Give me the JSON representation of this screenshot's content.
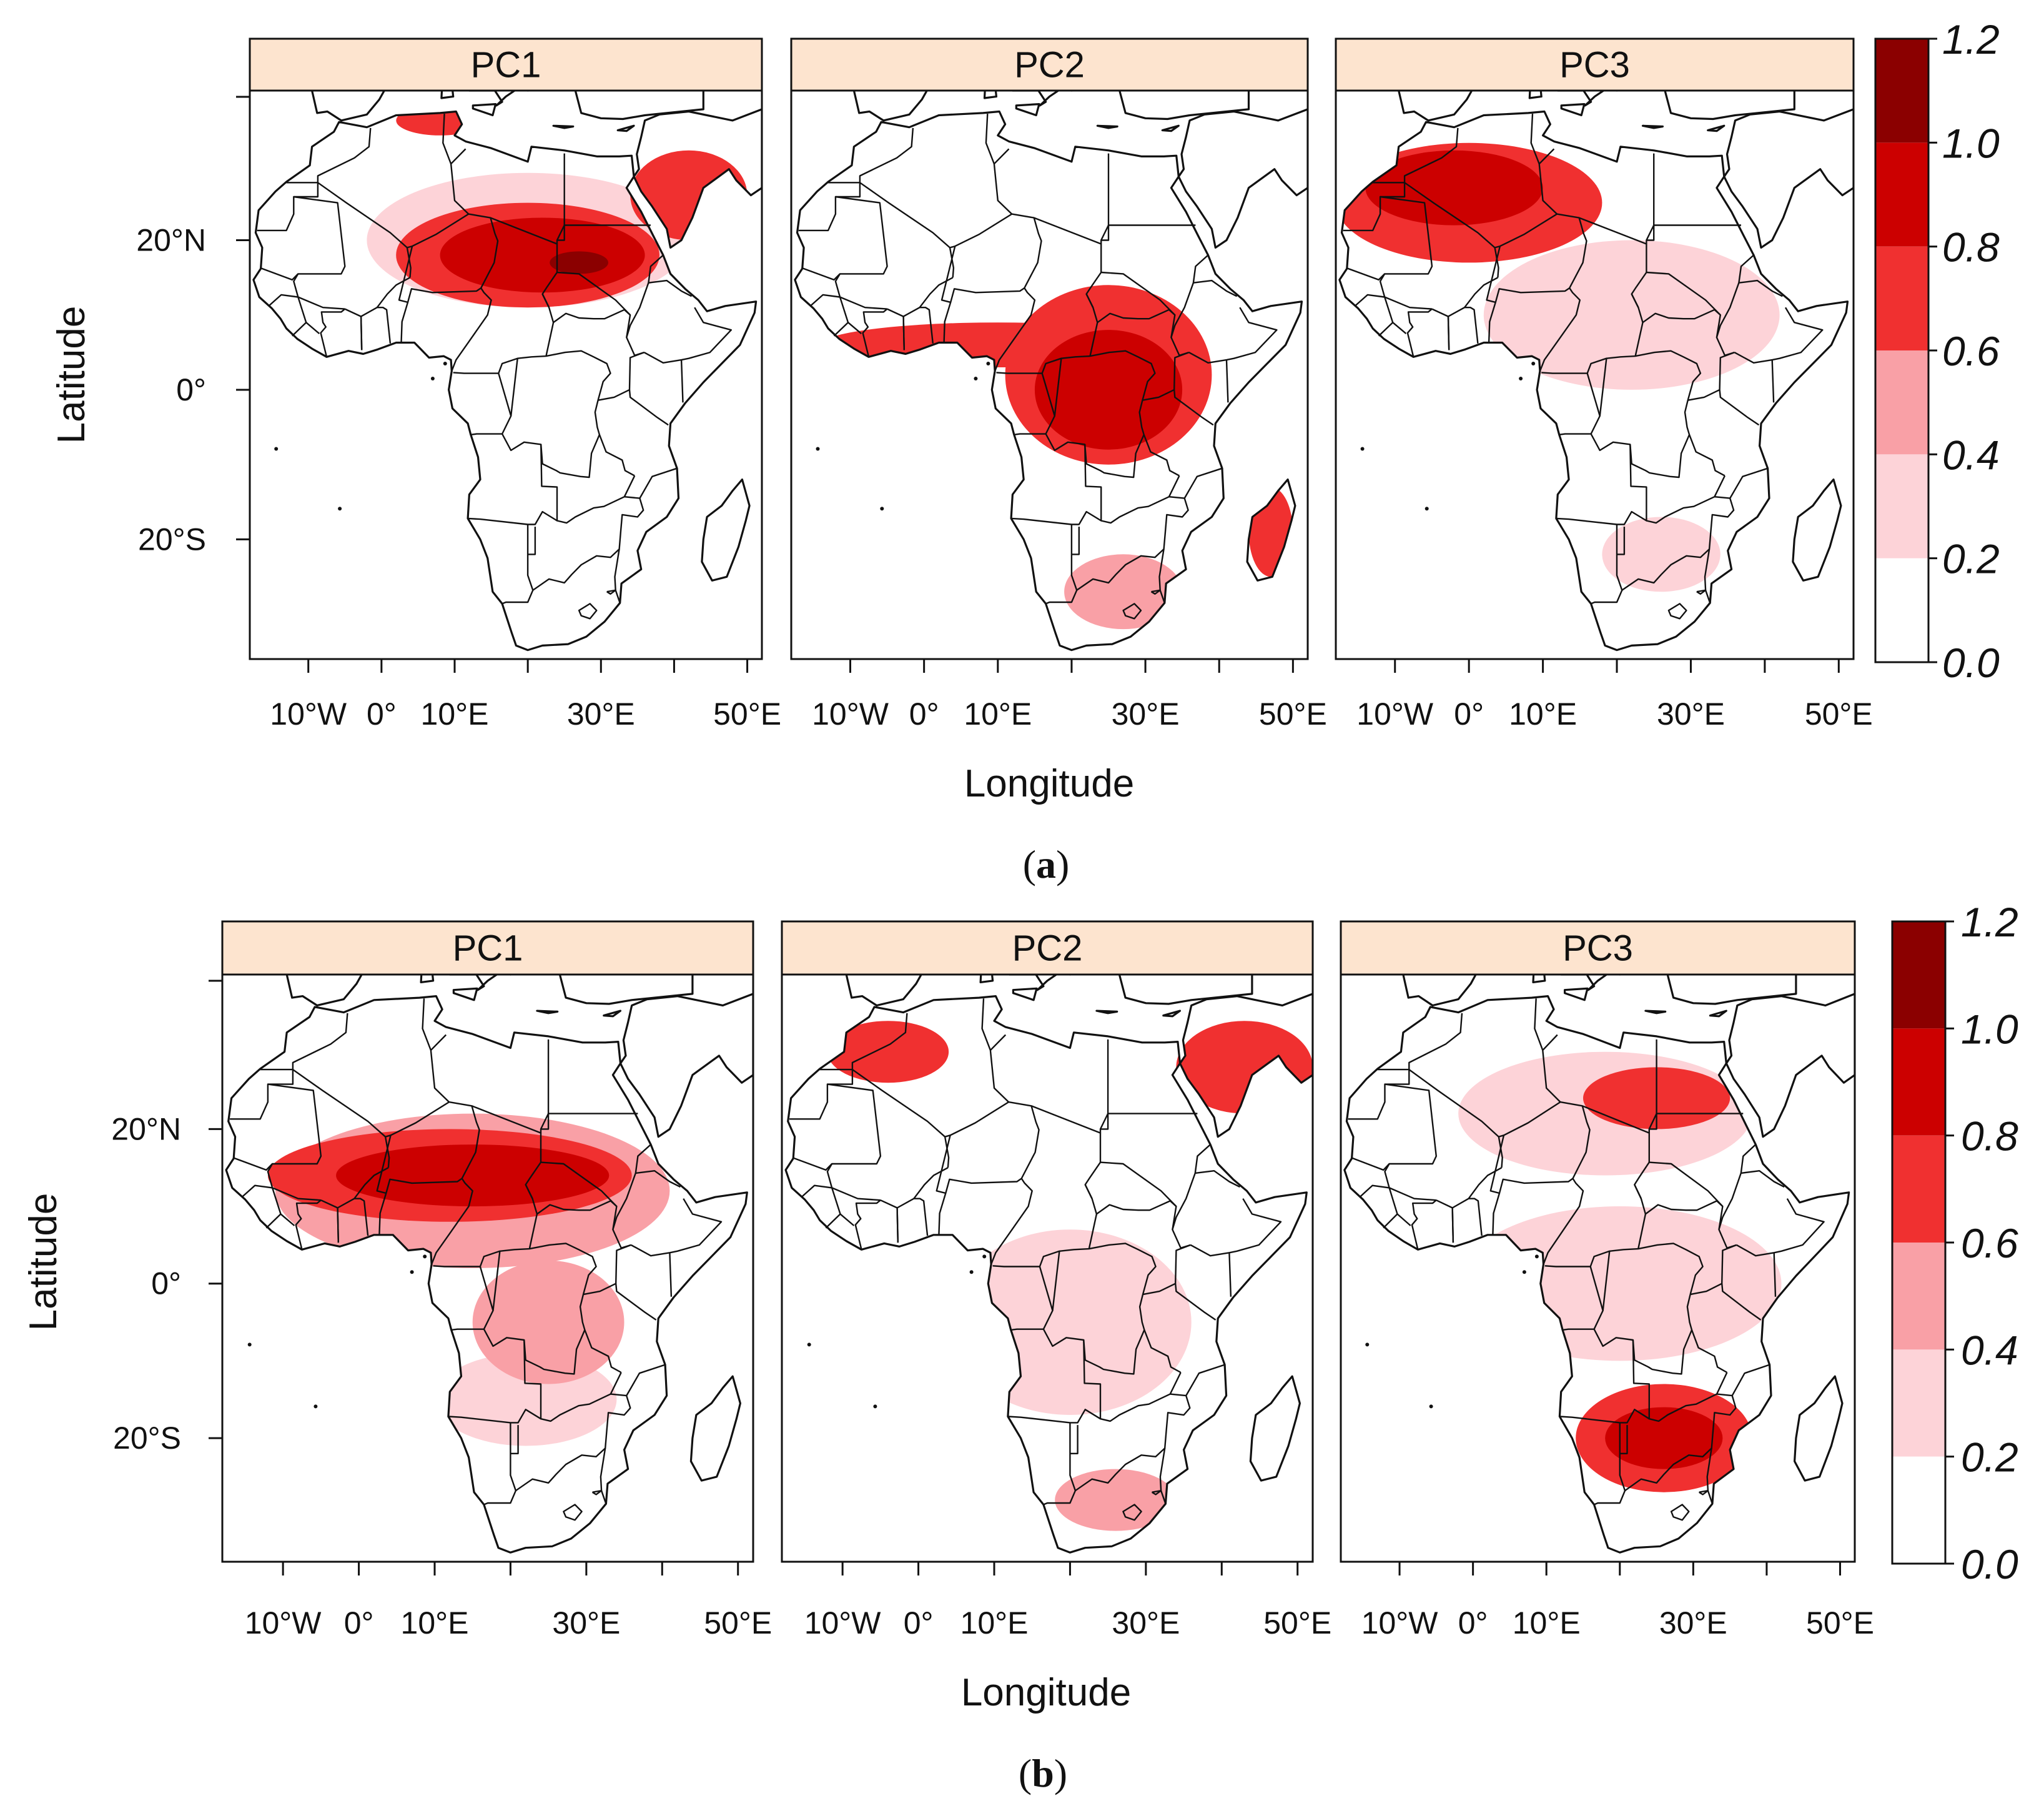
{
  "figure": {
    "panels": [
      {
        "caption": "a",
        "xlabel": "Longitude",
        "ylabel": "Latitude",
        "maps": [
          {
            "title": "PC1",
            "hotspots": [
              {
                "lon": 20,
                "lat": 20,
                "rx": 22,
                "ry": 9,
                "level": 0.2
              },
              {
                "lon": 20,
                "lat": 18,
                "rx": 18,
                "ry": 7,
                "level": 0.6
              },
              {
                "lon": 22,
                "lat": 18,
                "rx": 14,
                "ry": 5,
                "level": 0.8
              },
              {
                "lon": 27,
                "lat": 17,
                "rx": 4,
                "ry": 1.5,
                "level": 1.0
              },
              {
                "lon": 42,
                "lat": 26,
                "rx": 8,
                "ry": 6,
                "level": 0.6
              },
              {
                "lon": 8,
                "lat": 36,
                "rx": 6,
                "ry": 2,
                "level": 0.6
              }
            ]
          },
          {
            "title": "PC2",
            "hotspots": [
              {
                "lon": 10,
                "lat": 6,
                "rx": 24,
                "ry": 3,
                "level": 0.6
              },
              {
                "lon": 25,
                "lat": 2,
                "rx": 14,
                "ry": 12,
                "level": 0.6
              },
              {
                "lon": 25,
                "lat": 0,
                "rx": 10,
                "ry": 8,
                "level": 0.8
              },
              {
                "lon": 27,
                "lat": -27,
                "rx": 8,
                "ry": 5,
                "level": 0.4
              },
              {
                "lon": 47,
                "lat": -19,
                "rx": 3,
                "ry": 6,
                "level": 0.6
              }
            ]
          },
          {
            "title": "PC3",
            "hotspots": [
              {
                "lon": 0,
                "lat": 25,
                "rx": 18,
                "ry": 8,
                "level": 0.6
              },
              {
                "lon": -2,
                "lat": 27,
                "rx": 12,
                "ry": 5,
                "level": 0.8
              },
              {
                "lon": 22,
                "lat": 10,
                "rx": 20,
                "ry": 10,
                "level": 0.2
              },
              {
                "lon": 26,
                "lat": -22,
                "rx": 8,
                "ry": 5,
                "level": 0.2
              }
            ]
          }
        ]
      },
      {
        "caption": "b",
        "xlabel": "Longitude",
        "ylabel": "Latitude",
        "maps": [
          {
            "title": "PC1",
            "hotspots": [
              {
                "lon": 15,
                "lat": 12,
                "rx": 26,
                "ry": 10,
                "level": 0.4
              },
              {
                "lon": 12,
                "lat": 14,
                "rx": 24,
                "ry": 6,
                "level": 0.6
              },
              {
                "lon": 15,
                "lat": 14,
                "rx": 18,
                "ry": 4,
                "level": 0.8
              },
              {
                "lon": 25,
                "lat": -5,
                "rx": 10,
                "ry": 8,
                "level": 0.4
              },
              {
                "lon": 22,
                "lat": -15,
                "rx": 12,
                "ry": 6,
                "level": 0.2
              }
            ]
          },
          {
            "title": "PC2",
            "hotspots": [
              {
                "lon": -4,
                "lat": 30,
                "rx": 8,
                "ry": 4,
                "level": 0.6
              },
              {
                "lon": 43,
                "lat": 28,
                "rx": 9,
                "ry": 6,
                "level": 0.6
              },
              {
                "lon": 20,
                "lat": -5,
                "rx": 16,
                "ry": 12,
                "level": 0.2
              },
              {
                "lon": 26,
                "lat": -28,
                "rx": 8,
                "ry": 4,
                "level": 0.4
              }
            ]
          },
          {
            "title": "PC3",
            "hotspots": [
              {
                "lon": 18,
                "lat": 22,
                "rx": 20,
                "ry": 8,
                "level": 0.2
              },
              {
                "lon": 25,
                "lat": 24,
                "rx": 10,
                "ry": 4,
                "level": 0.6
              },
              {
                "lon": 26,
                "lat": -20,
                "rx": 12,
                "ry": 7,
                "level": 0.6
              },
              {
                "lon": 26,
                "lat": -20,
                "rx": 8,
                "ry": 4,
                "level": 0.8
              },
              {
                "lon": 20,
                "lat": 0,
                "rx": 22,
                "ry": 10,
                "level": 0.2
              }
            ]
          }
        ]
      }
    ],
    "lon_range": [
      -18,
      52
    ],
    "lat_range": [
      -36,
      40
    ],
    "xticks": [
      {
        "value": -10,
        "label": "10°W"
      },
      {
        "value": 0,
        "label": "0°"
      },
      {
        "value": 10,
        "label": "10°E"
      },
      {
        "value": 30,
        "label": "30°E"
      },
      {
        "value": 50,
        "label": "50°E"
      }
    ],
    "xminor": [
      -10,
      0,
      10,
      20,
      30,
      40,
      50
    ],
    "yticks": [
      {
        "value": 20,
        "label": "20°N"
      },
      {
        "value": 0,
        "label": "0°"
      },
      {
        "value": -20,
        "label": "20°S"
      }
    ],
    "colorbar": {
      "labels": [
        "1.2",
        "1.0",
        "0.8",
        "0.6",
        "0.4",
        "0.2",
        "0.0"
      ],
      "bands": [
        {
          "from": 0.0,
          "to": 0.2,
          "color": "#ffffff"
        },
        {
          "from": 0.2,
          "to": 0.4,
          "color": "#fdd3d8"
        },
        {
          "from": 0.4,
          "to": 0.6,
          "color": "#f9a0a6"
        },
        {
          "from": 0.6,
          "to": 0.8,
          "color": "#f03030"
        },
        {
          "from": 0.8,
          "to": 1.0,
          "color": "#cc0000"
        },
        {
          "from": 1.0,
          "to": 1.2,
          "color": "#8b0000"
        }
      ]
    }
  }
}
